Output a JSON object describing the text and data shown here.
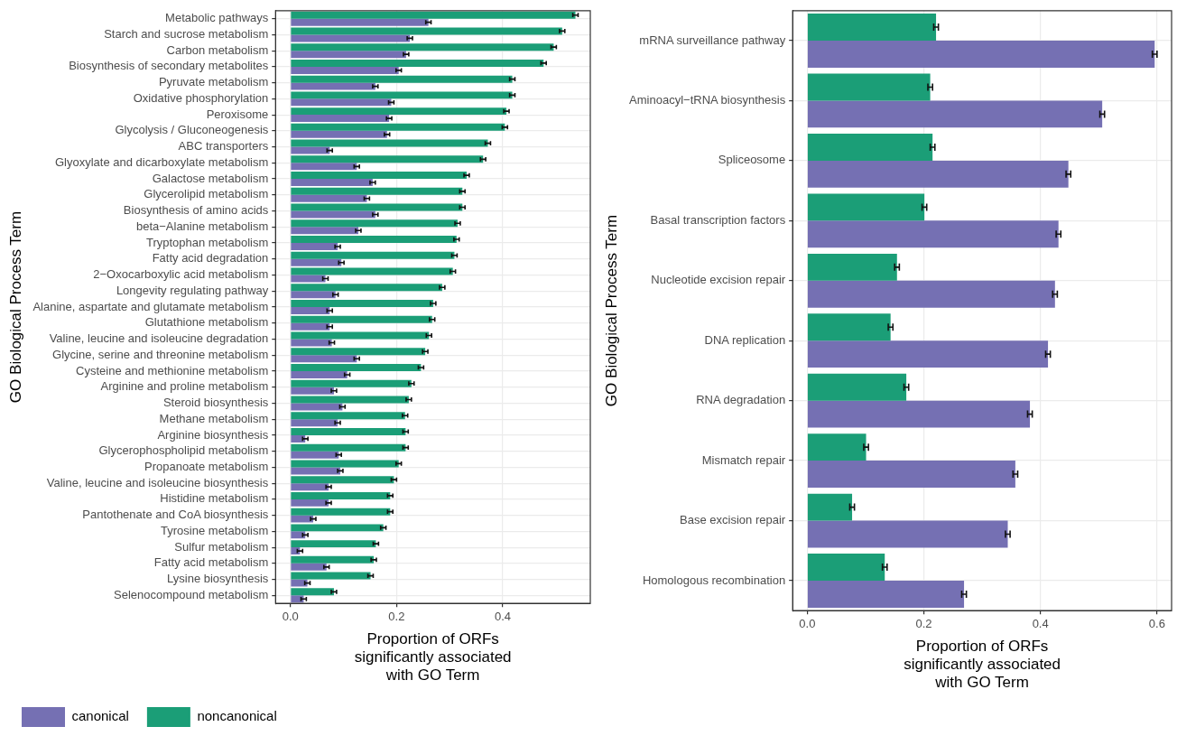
{
  "chart_data": [
    {
      "type": "bar",
      "orientation": "horizontal",
      "xlabel": "Proportion of ORFs\nsignificantly associated\nwith GO Term",
      "ylabel": "GO Biological Process Term",
      "categories": [
        "Metabolic pathways",
        "Starch and sucrose metabolism",
        "Carbon metabolism",
        "Biosynthesis of secondary metabolites",
        "Pyruvate metabolism",
        "Oxidative phosphorylation",
        "Peroxisome",
        "Glycolysis / Gluconeogenesis",
        "ABC transporters",
        "Glyoxylate and dicarboxylate metabolism",
        "Galactose metabolism",
        "Glycerolipid metabolism",
        "Biosynthesis of amino acids",
        "beta−Alanine metabolism",
        "Tryptophan metabolism",
        "Fatty acid degradation",
        "2−Oxocarboxylic acid metabolism",
        "Longevity regulating pathway",
        "Alanine, aspartate and glutamate metabolism",
        "Glutathione metabolism",
        "Valine, leucine and isoleucine degradation",
        "Glycine, serine and threonine metabolism",
        "Cysteine and methionine metabolism",
        "Arginine and proline metabolism",
        "Steroid biosynthesis",
        "Methane metabolism",
        "Arginine biosynthesis",
        "Glycerophospholipid metabolism",
        "Propanoate metabolism",
        "Valine, leucine and isoleucine biosynthesis",
        "Histidine metabolism",
        "Pantothenate and CoA biosynthesis",
        "Tyrosine metabolism",
        "Sulfur metabolism",
        "Fatty acid metabolism",
        "Lysine biosynthesis",
        "Selenocompound metabolism"
      ],
      "series": [
        {
          "name": "canonical",
          "color": "#7570b3",
          "values": [
            0.26,
            0.225,
            0.218,
            0.204,
            0.16,
            0.19,
            0.186,
            0.182,
            0.074,
            0.125,
            0.155,
            0.144,
            0.16,
            0.128,
            0.089,
            0.096,
            0.066,
            0.085,
            0.074,
            0.074,
            0.078,
            0.125,
            0.107,
            0.082,
            0.098,
            0.089,
            0.028,
            0.091,
            0.094,
            0.072,
            0.072,
            0.043,
            0.028,
            0.018,
            0.068,
            0.032,
            0.025
          ],
          "errors": [
            0.005,
            0.005,
            0.005,
            0.005,
            0.005,
            0.005,
            0.005,
            0.005,
            0.005,
            0.005,
            0.005,
            0.005,
            0.005,
            0.005,
            0.005,
            0.005,
            0.005,
            0.005,
            0.005,
            0.005,
            0.005,
            0.005,
            0.005,
            0.005,
            0.005,
            0.005,
            0.005,
            0.005,
            0.005,
            0.005,
            0.005,
            0.005,
            0.005,
            0.005,
            0.005,
            0.005,
            0.005
          ]
        },
        {
          "name": "noncanonical",
          "color": "#1b9e77",
          "values": [
            0.537,
            0.512,
            0.496,
            0.477,
            0.418,
            0.418,
            0.407,
            0.404,
            0.372,
            0.363,
            0.332,
            0.324,
            0.324,
            0.315,
            0.313,
            0.309,
            0.306,
            0.286,
            0.269,
            0.267,
            0.261,
            0.254,
            0.246,
            0.228,
            0.223,
            0.216,
            0.217,
            0.217,
            0.204,
            0.195,
            0.188,
            0.188,
            0.175,
            0.161,
            0.157,
            0.151,
            0.082
          ],
          "errors": [
            0.005,
            0.005,
            0.005,
            0.005,
            0.005,
            0.005,
            0.005,
            0.005,
            0.005,
            0.005,
            0.005,
            0.005,
            0.005,
            0.005,
            0.005,
            0.005,
            0.005,
            0.005,
            0.005,
            0.005,
            0.005,
            0.005,
            0.005,
            0.005,
            0.005,
            0.005,
            0.005,
            0.005,
            0.005,
            0.005,
            0.005,
            0.005,
            0.005,
            0.005,
            0.005,
            0.005,
            0.005
          ]
        }
      ],
      "xlim": [
        -0.028,
        0.565
      ],
      "xticks": [
        {
          "value": 0,
          "label": "0.0"
        },
        {
          "value": 0.2,
          "label": "0.2"
        },
        {
          "value": 0.4,
          "label": "0.4"
        }
      ],
      "grid": true,
      "legend": "bottom"
    },
    {
      "type": "bar",
      "orientation": "horizontal",
      "xlabel": "Proportion of ORFs\nsignificantly associated\nwith GO Term",
      "ylabel": "GO Biological Process Term",
      "categories": [
        "mRNA surveillance pathway",
        "Aminoacyl−tRNA biosynthesis",
        "Spliceosome",
        "Basal transcription factors",
        "Nucleotide excision repair",
        "DNA replication",
        "RNA degradation",
        "Mismatch repair",
        "Base excision repair",
        "Homologous recombination"
      ],
      "series": [
        {
          "color": "#7570b3",
          "values": [
            0.596,
            0.506,
            0.448,
            0.431,
            0.425,
            0.413,
            0.382,
            0.357,
            0.344,
            0.269
          ],
          "errors": [
            0.004,
            0.004,
            0.004,
            0.004,
            0.004,
            0.004,
            0.004,
            0.004,
            0.004,
            0.004
          ]
        },
        {
          "color": "#1b9e77",
          "values": [
            0.221,
            0.211,
            0.215,
            0.201,
            0.154,
            0.143,
            0.17,
            0.101,
            0.077,
            0.133
          ],
          "errors": [
            0.004,
            0.004,
            0.004,
            0.004,
            0.004,
            0.004,
            0.004,
            0.004,
            0.004,
            0.004
          ]
        }
      ],
      "xlim": [
        -0.025,
        0.625
      ],
      "xticks": [
        {
          "value": 0,
          "label": "0.0"
        },
        {
          "value": 0.2,
          "label": "0.2"
        },
        {
          "value": 0.4,
          "label": "0.4"
        },
        {
          "value": 0.6,
          "label": "0.6"
        }
      ],
      "grid": true
    }
  ]
}
